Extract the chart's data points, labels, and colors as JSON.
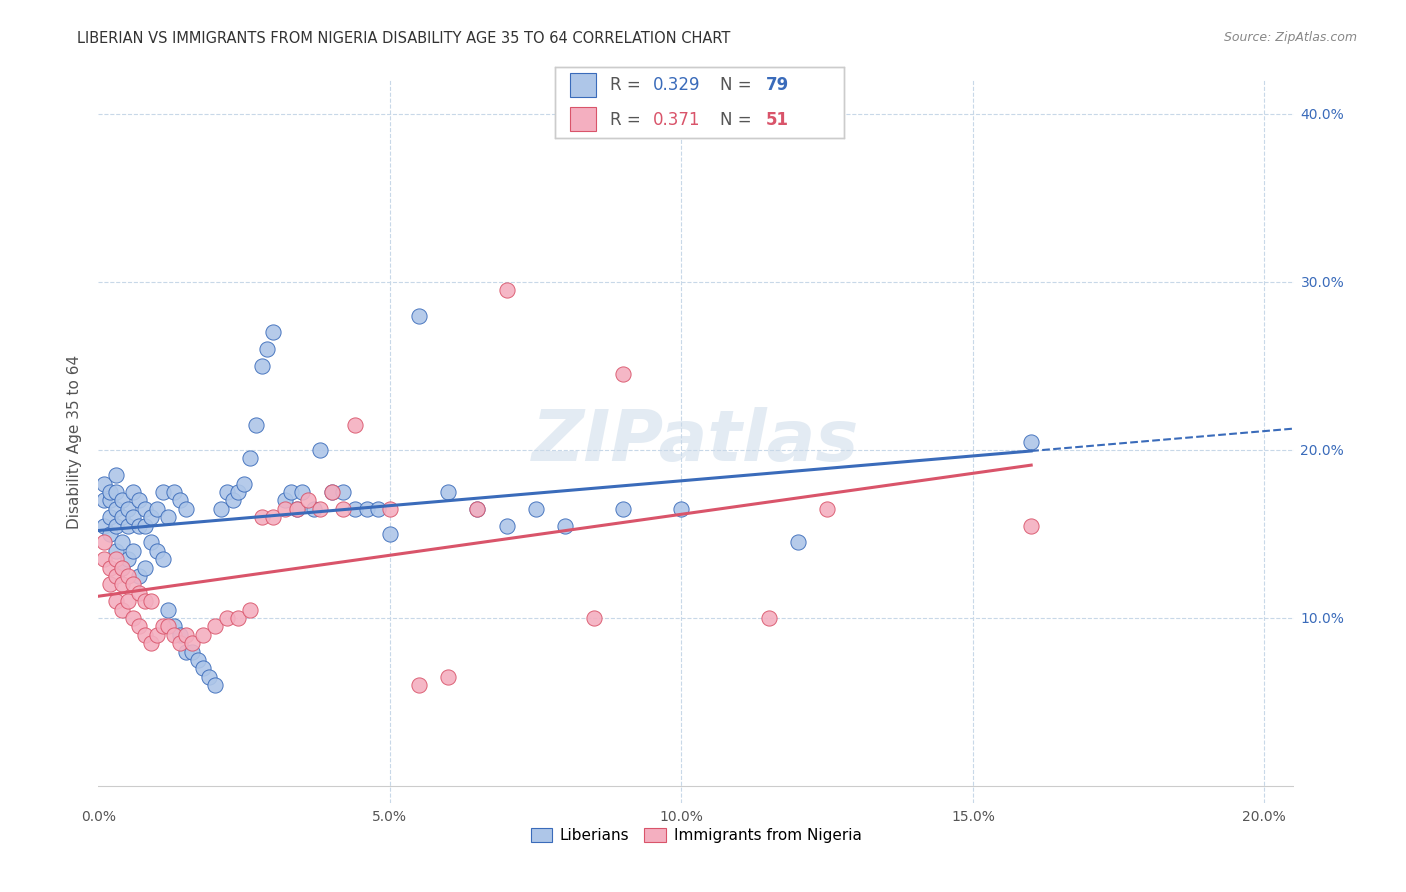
{
  "title": "LIBERIAN VS IMMIGRANTS FROM NIGERIA DISABILITY AGE 35 TO 64 CORRELATION CHART",
  "source": "Source: ZipAtlas.com",
  "ylabel": "Disability Age 35 to 64",
  "xlim": [
    0.0,
    0.205
  ],
  "ylim": [
    -0.01,
    0.42
  ],
  "liberian_R": 0.329,
  "liberian_N": 79,
  "nigeria_R": 0.371,
  "nigeria_N": 51,
  "liberian_color": "#aec6e8",
  "nigeria_color": "#f4afc0",
  "liberian_line_color": "#3a6bba",
  "nigeria_line_color": "#d9546a",
  "background_color": "#ffffff",
  "grid_color": "#c8d8e8",
  "watermark": "ZIPatlas",
  "liberian_x": [
    0.001,
    0.001,
    0.001,
    0.002,
    0.002,
    0.002,
    0.002,
    0.003,
    0.003,
    0.003,
    0.003,
    0.003,
    0.004,
    0.004,
    0.004,
    0.004,
    0.005,
    0.005,
    0.005,
    0.006,
    0.006,
    0.006,
    0.007,
    0.007,
    0.007,
    0.008,
    0.008,
    0.008,
    0.009,
    0.009,
    0.01,
    0.01,
    0.011,
    0.011,
    0.012,
    0.012,
    0.013,
    0.013,
    0.014,
    0.014,
    0.015,
    0.015,
    0.016,
    0.017,
    0.018,
    0.019,
    0.02,
    0.021,
    0.022,
    0.023,
    0.024,
    0.025,
    0.026,
    0.027,
    0.028,
    0.029,
    0.03,
    0.032,
    0.033,
    0.034,
    0.035,
    0.037,
    0.038,
    0.04,
    0.042,
    0.044,
    0.046,
    0.048,
    0.05,
    0.055,
    0.06,
    0.065,
    0.07,
    0.075,
    0.08,
    0.09,
    0.1,
    0.12,
    0.16
  ],
  "liberian_y": [
    0.155,
    0.17,
    0.18,
    0.15,
    0.16,
    0.17,
    0.175,
    0.14,
    0.155,
    0.165,
    0.175,
    0.185,
    0.13,
    0.145,
    0.16,
    0.17,
    0.135,
    0.155,
    0.165,
    0.14,
    0.16,
    0.175,
    0.125,
    0.155,
    0.17,
    0.13,
    0.155,
    0.165,
    0.145,
    0.16,
    0.14,
    0.165,
    0.135,
    0.175,
    0.105,
    0.16,
    0.095,
    0.175,
    0.09,
    0.17,
    0.08,
    0.165,
    0.08,
    0.075,
    0.07,
    0.065,
    0.06,
    0.165,
    0.175,
    0.17,
    0.175,
    0.18,
    0.195,
    0.215,
    0.25,
    0.26,
    0.27,
    0.17,
    0.175,
    0.165,
    0.175,
    0.165,
    0.2,
    0.175,
    0.175,
    0.165,
    0.165,
    0.165,
    0.15,
    0.28,
    0.175,
    0.165,
    0.155,
    0.165,
    0.155,
    0.165,
    0.165,
    0.145,
    0.205
  ],
  "nigeria_x": [
    0.001,
    0.001,
    0.002,
    0.002,
    0.003,
    0.003,
    0.003,
    0.004,
    0.004,
    0.004,
    0.005,
    0.005,
    0.006,
    0.006,
    0.007,
    0.007,
    0.008,
    0.008,
    0.009,
    0.009,
    0.01,
    0.011,
    0.012,
    0.013,
    0.014,
    0.015,
    0.016,
    0.018,
    0.02,
    0.022,
    0.024,
    0.026,
    0.028,
    0.03,
    0.032,
    0.034,
    0.036,
    0.038,
    0.04,
    0.042,
    0.044,
    0.05,
    0.055,
    0.06,
    0.065,
    0.07,
    0.085,
    0.09,
    0.115,
    0.125,
    0.16
  ],
  "nigeria_y": [
    0.135,
    0.145,
    0.12,
    0.13,
    0.11,
    0.125,
    0.135,
    0.105,
    0.12,
    0.13,
    0.11,
    0.125,
    0.1,
    0.12,
    0.095,
    0.115,
    0.09,
    0.11,
    0.085,
    0.11,
    0.09,
    0.095,
    0.095,
    0.09,
    0.085,
    0.09,
    0.085,
    0.09,
    0.095,
    0.1,
    0.1,
    0.105,
    0.16,
    0.16,
    0.165,
    0.165,
    0.17,
    0.165,
    0.175,
    0.165,
    0.215,
    0.165,
    0.06,
    0.065,
    0.165,
    0.295,
    0.1,
    0.245,
    0.1,
    0.165,
    0.155
  ]
}
